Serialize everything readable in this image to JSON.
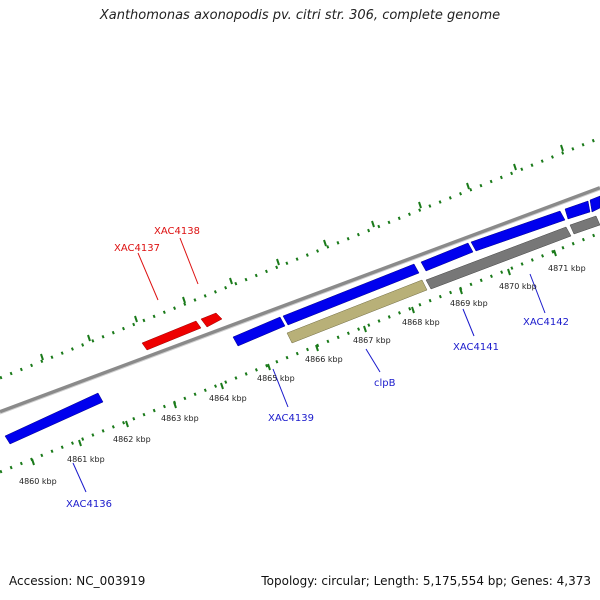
{
  "title": "Xanthomonas axonopodis pv. citri str. 306, complete genome",
  "footer": {
    "accession": "Accession: NC_003919",
    "topology": "Topology: circular; Length: 5,175,554 bp; Genes: 4,373"
  },
  "kbp_labels": [
    "4860 kbp",
    "4861 kbp",
    "4862 kbp",
    "4863 kbp",
    "4864 kbp",
    "4865 kbp",
    "4866 kbp",
    "4867 kbp",
    "4868 kbp",
    "4869 kbp",
    "4870 kbp",
    "4871 kbp"
  ],
  "gene_labels": {
    "XAC4136": "XAC4136",
    "XAC4137": "XAC4137",
    "XAC4138": "XAC4138",
    "XAC4139": "XAC4139",
    "clpB": "clpB",
    "XAC4141": "XAC4141",
    "XAC4142": "XAC4142"
  },
  "colors": {
    "plus_gene": "#0000ee",
    "minus_gene": "#ee0000",
    "highlight_gene": "#b8b078",
    "grey_gene": "#777777",
    "backbone": "#8a8a8a",
    "tick": "#1a7a1a",
    "plus_label": "#1a1acc",
    "minus_label": "#dd1111"
  }
}
